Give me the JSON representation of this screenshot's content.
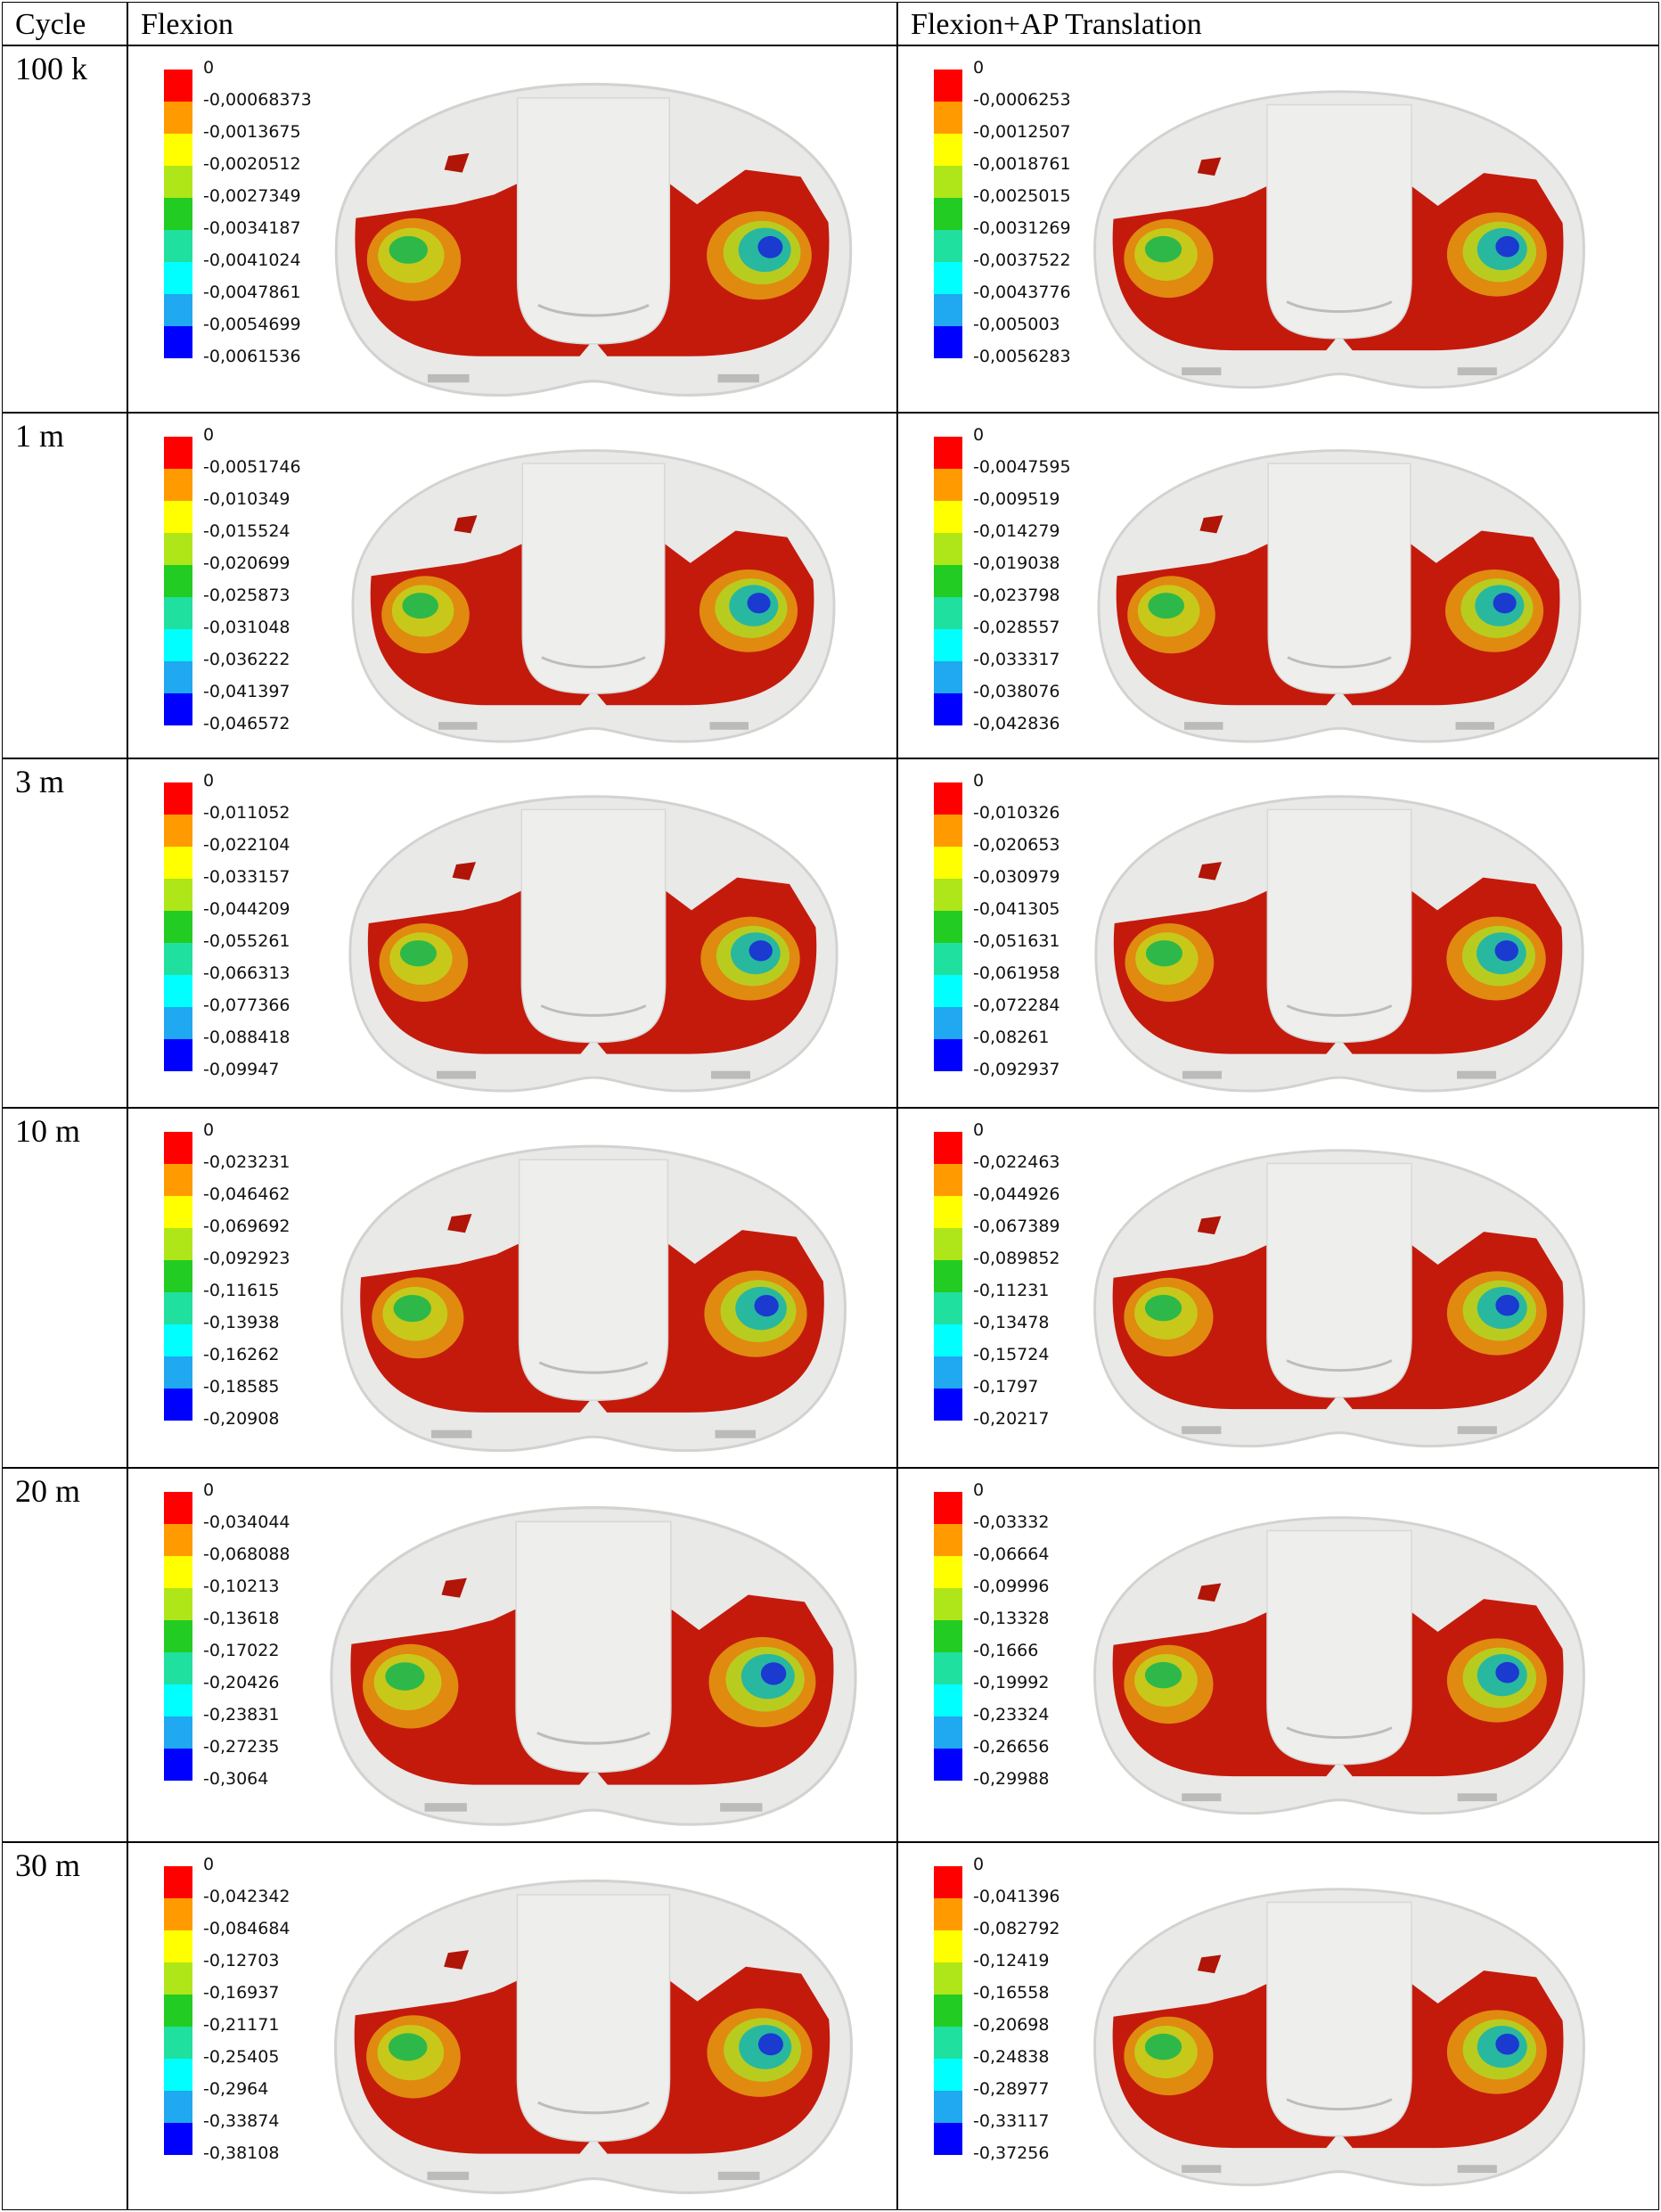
{
  "header": {
    "cycle": "Cycle",
    "flexion": "Flexion",
    "ap": "Flexion+AP Translation"
  },
  "rows": [
    {
      "cycle": "100 k",
      "flexion": [
        "0",
        "-0,00068373",
        "-0,0013675",
        "-0,0020512",
        "-0,0027349",
        "-0,0034187",
        "-0,0041024",
        "-0,0047861",
        "-0,0054699",
        "-0,0061536"
      ],
      "ap": [
        "0",
        "-0,0006253",
        "-0,0012507",
        "-0,0018761",
        "-0,0025015",
        "-0,0031269",
        "-0,0037522",
        "-0,0043776",
        "-0,005003",
        "-0,0056283"
      ]
    },
    {
      "cycle": "1 m",
      "flexion": [
        "0",
        "-0,0051746",
        "-0,010349",
        "-0,015524",
        "-0,020699",
        "-0,025873",
        "-0,031048",
        "-0,036222",
        "-0,041397",
        "-0,046572"
      ],
      "ap": [
        "0",
        "-0,0047595",
        "-0,009519",
        "-0,014279",
        "-0,019038",
        "-0,023798",
        "-0,028557",
        "-0,033317",
        "-0,038076",
        "-0,042836"
      ]
    },
    {
      "cycle": "3 m",
      "flexion": [
        "0",
        "-0,011052",
        "-0,022104",
        "-0,033157",
        "-0,044209",
        "-0,055261",
        "-0,066313",
        "-0,077366",
        "-0,088418",
        "-0,09947"
      ],
      "ap": [
        "0",
        "-0,010326",
        "-0,020653",
        "-0,030979",
        "-0,041305",
        "-0,051631",
        "-0,061958",
        "-0,072284",
        "-0,08261",
        "-0,092937"
      ]
    },
    {
      "cycle": "10 m",
      "flexion": [
        "0",
        "-0,023231",
        "-0,046462",
        "-0,069692",
        "-0,092923",
        "-0,11615",
        "-0,13938",
        "-0,16262",
        "-0,18585",
        "-0,20908"
      ],
      "ap": [
        "0",
        "-0,022463",
        "-0,044926",
        "-0,067389",
        "-0,089852",
        "-0,11231",
        "-0,13478",
        "-0,15724",
        "-0,1797",
        "-0,20217"
      ]
    },
    {
      "cycle": "20 m",
      "flexion": [
        "0",
        "-0,034044",
        "-0,068088",
        "-0,10213",
        "-0,13618",
        "-0,17022",
        "-0,20426",
        "-0,23831",
        "-0,27235",
        "-0,3064"
      ],
      "ap": [
        "0",
        "-0,03332",
        "-0,06664",
        "-0,09996",
        "-0,13328",
        "-0,1666",
        "-0,19992",
        "-0,23324",
        "-0,26656",
        "-0,29988"
      ]
    },
    {
      "cycle": "30 m",
      "flexion": [
        "0",
        "-0,042342",
        "-0,084684",
        "-0,12703",
        "-0,16937",
        "-0,21171",
        "-0,25405",
        "-0,2964",
        "-0,33874",
        "-0,38108"
      ],
      "ap": [
        "0",
        "-0,041396",
        "-0,082792",
        "-0,12419",
        "-0,16558",
        "-0,20698",
        "-0,24838",
        "-0,28977",
        "-0,33117",
        "-0,37256"
      ]
    }
  ]
}
